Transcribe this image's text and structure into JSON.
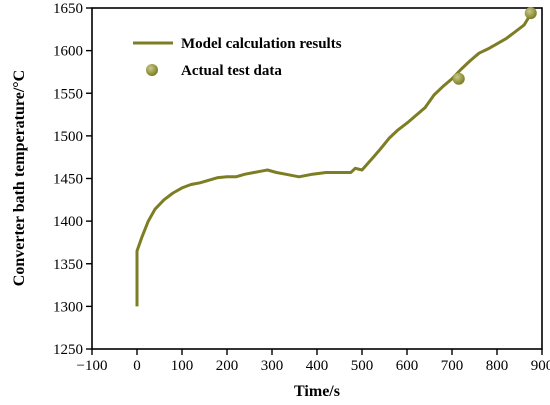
{
  "chart_data": {
    "type": "line",
    "xlabel": "Time/s",
    "ylabel": "Converter bath temperature/°C",
    "xlim": [
      -100,
      900
    ],
    "ylim": [
      1250,
      1650
    ],
    "x_ticks": [
      -100,
      0,
      100,
      200,
      300,
      400,
      500,
      600,
      700,
      800,
      900
    ],
    "y_ticks": [
      1250,
      1300,
      1350,
      1400,
      1450,
      1500,
      1550,
      1600,
      1650
    ],
    "grid": false,
    "legend_position": "top-left",
    "colors": {
      "line": "#7d7d24",
      "marker": "#7d7d24",
      "marker_highlight": "#c9c98a"
    },
    "series": [
      {
        "name": "Model calculation results",
        "kind": "line",
        "x": [
          0,
          0,
          10,
          25,
          40,
          60,
          80,
          100,
          120,
          140,
          160,
          180,
          200,
          220,
          240,
          260,
          280,
          290,
          310,
          330,
          360,
          390,
          420,
          450,
          475,
          485,
          500,
          525,
          540,
          560,
          580,
          600,
          620,
          640,
          660,
          680,
          700,
          720,
          740,
          760,
          780,
          800,
          820,
          840,
          860,
          875
        ],
        "y": [
          1300,
          1365,
          1380,
          1400,
          1414,
          1425,
          1433,
          1439,
          1443,
          1445,
          1448,
          1451,
          1452,
          1452,
          1455,
          1457,
          1459,
          1460,
          1457,
          1455,
          1452,
          1455,
          1457,
          1457,
          1457,
          1462,
          1460,
          1475,
          1484,
          1497,
          1507,
          1515,
          1524,
          1533,
          1548,
          1558,
          1567,
          1578,
          1588,
          1597,
          1602,
          1608,
          1614,
          1622,
          1630,
          1643
        ]
      },
      {
        "name": "Actual test data",
        "kind": "scatter",
        "x": [
          715,
          875
        ],
        "y": [
          1567,
          1644
        ]
      }
    ]
  }
}
